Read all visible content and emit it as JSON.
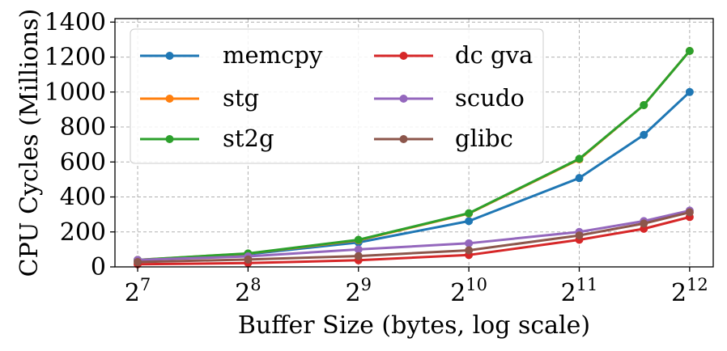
{
  "chart_data": {
    "type": "line",
    "title": "",
    "xlabel": "Buffer Size (bytes, log scale)",
    "ylabel": "CPU Cycles (Millions)",
    "x_scale": "log2",
    "x": [
      128,
      256,
      512,
      1024,
      2048,
      3072,
      4096
    ],
    "x_ticks": [
      {
        "value": 128,
        "base": "2",
        "exp": "7"
      },
      {
        "value": 256,
        "base": "2",
        "exp": "8"
      },
      {
        "value": 512,
        "base": "2",
        "exp": "9"
      },
      {
        "value": 1024,
        "base": "2",
        "exp": "10"
      },
      {
        "value": 2048,
        "base": "2",
        "exp": "11"
      },
      {
        "value": 4096,
        "base": "2",
        "exp": "12"
      }
    ],
    "y_ticks": [
      0,
      200,
      400,
      600,
      800,
      1000,
      1200,
      1400
    ],
    "xlim": [
      111,
      4750
    ],
    "ylim": [
      0,
      1420
    ],
    "grid": true,
    "legend_position": "top-left",
    "legend_columns": 2,
    "series": [
      {
        "name": "memcpy",
        "color": "#1f77b4",
        "values": [
          38,
          72,
          140,
          262,
          508,
          755,
          1000
        ]
      },
      {
        "name": "stg",
        "color": "#ff7f0e",
        "values": [
          40,
          76,
          152,
          305,
          615,
          925,
          1235
        ]
      },
      {
        "name": "st2g",
        "color": "#2ca02c",
        "values": [
          40,
          77,
          155,
          307,
          618,
          925,
          1235
        ]
      },
      {
        "name": "dc gva",
        "color": "#d62728",
        "values": [
          15,
          22,
          38,
          68,
          155,
          218,
          285
        ]
      },
      {
        "name": "scudo",
        "color": "#9467bd",
        "values": [
          40,
          60,
          100,
          135,
          200,
          262,
          322
        ]
      },
      {
        "name": "glibc",
        "color": "#8c564b",
        "values": [
          28,
          42,
          62,
          95,
          180,
          248,
          312
        ]
      }
    ]
  }
}
